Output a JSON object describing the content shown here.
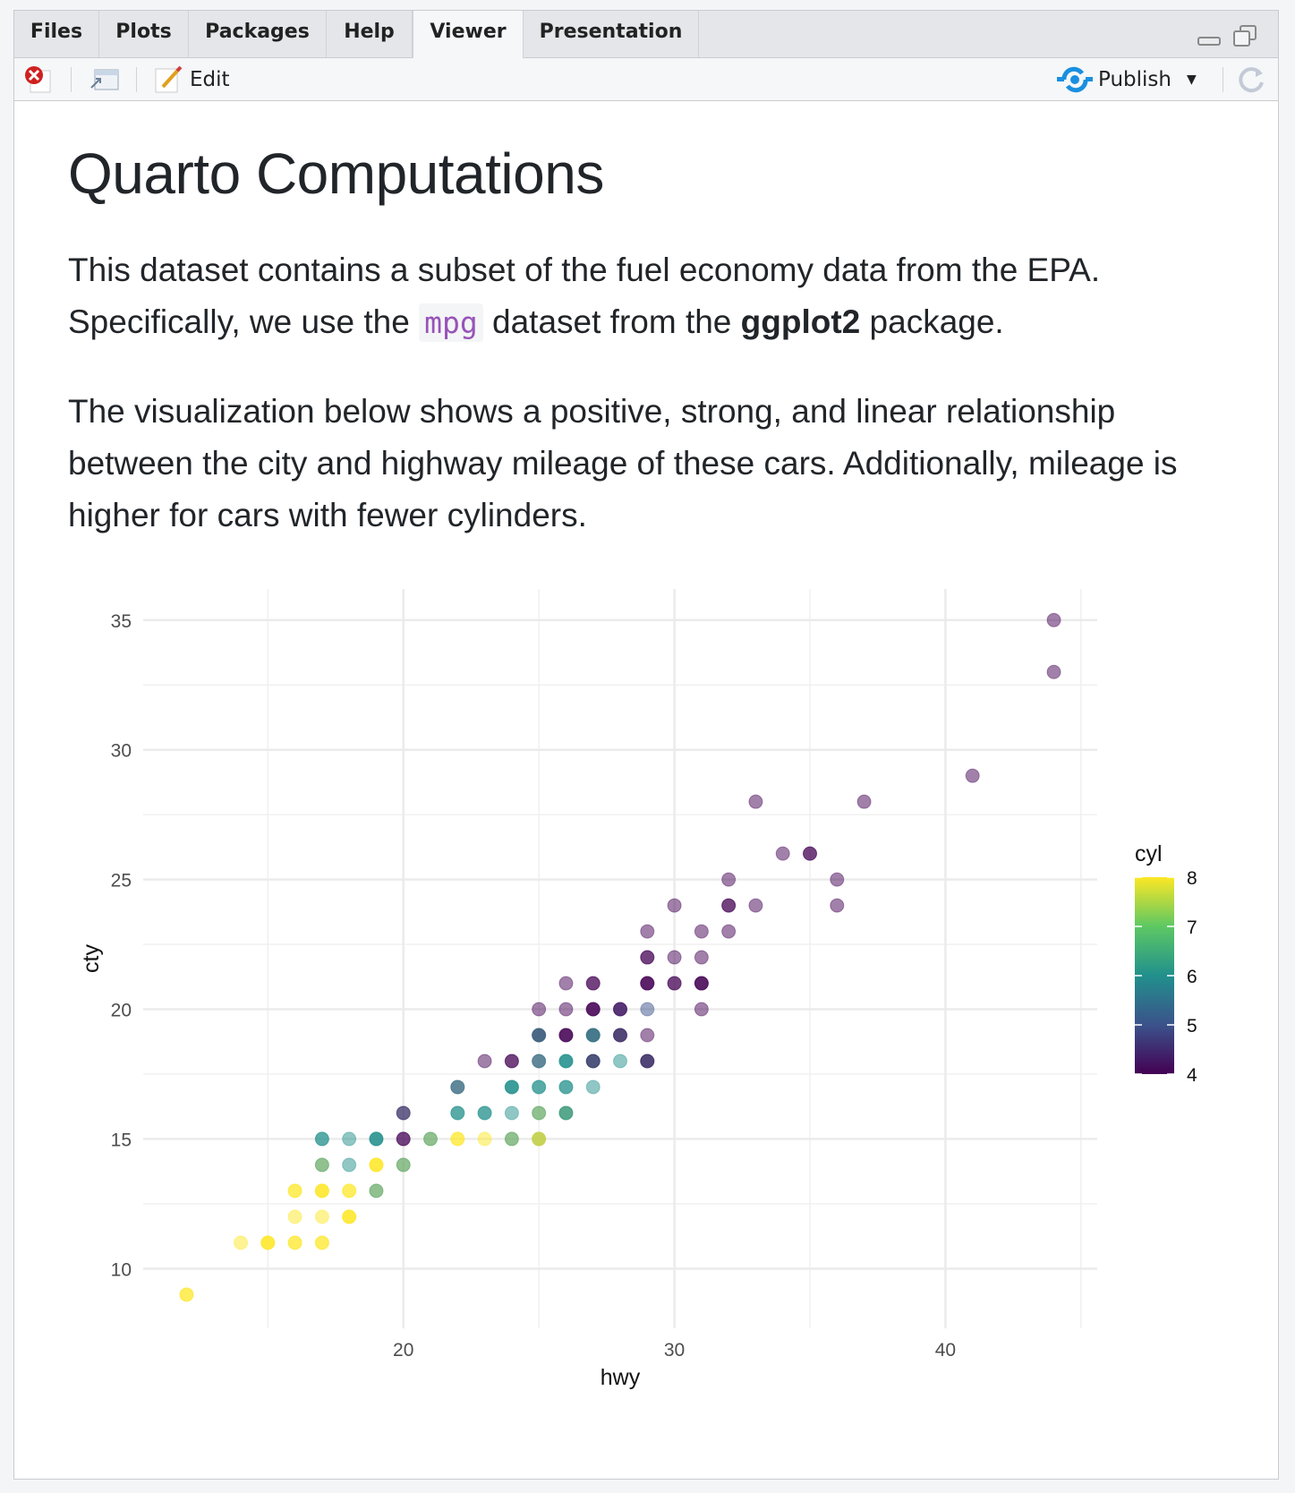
{
  "tabs": [
    {
      "label": "Files"
    },
    {
      "label": "Plots"
    },
    {
      "label": "Packages"
    },
    {
      "label": "Help"
    },
    {
      "label": "Viewer",
      "active": true
    },
    {
      "label": "Presentation"
    }
  ],
  "toolbar": {
    "edit_label": "Edit",
    "publish_label": "Publish",
    "publish_color": "#1a8fe0"
  },
  "document": {
    "title": "Quarto Computations",
    "para1_a": "This dataset contains a subset of the fuel economy data from the EPA. Specifically, we use the ",
    "para1_code": "mpg",
    "para1_b": " dataset from the ",
    "para1_bold": "ggplot2",
    "para1_c": " package.",
    "para2": "The visualization below shows a positive, strong, and linear relationship between the city and highway mileage of these cars. Additionally, mileage is higher for cars with fewer cylinders."
  },
  "chart_data": {
    "type": "scatter",
    "xlabel": "hwy",
    "ylabel": "cty",
    "xlim": [
      10.4,
      45.6
    ],
    "ylim": [
      7.7,
      36.2
    ],
    "xticks": [
      20,
      30,
      40
    ],
    "yticks": [
      10,
      15,
      20,
      25,
      30,
      35
    ],
    "grid": true,
    "legend": {
      "title": "cyl",
      "position": "right",
      "ticks": [
        4,
        5,
        6,
        7,
        8
      ],
      "range": [
        4,
        8
      ],
      "palette": "viridis"
    },
    "colors": [
      "#440154",
      "#3b528b",
      "#21908c",
      "#5dc863",
      "#fde725"
    ],
    "point_alpha": 0.5,
    "points": [
      [
        12,
        9,
        [
          8,
          8
        ]
      ],
      [
        14,
        11,
        [
          8
        ]
      ],
      [
        15,
        11,
        [
          8,
          8,
          8
        ]
      ],
      [
        16,
        11,
        [
          8,
          8
        ]
      ],
      [
        17,
        11,
        [
          8,
          8
        ]
      ],
      [
        16,
        12,
        [
          8
        ]
      ],
      [
        17,
        12,
        [
          8
        ]
      ],
      [
        18,
        12,
        [
          8,
          8,
          8
        ]
      ],
      [
        16,
        13,
        [
          8,
          8
        ]
      ],
      [
        17,
        13,
        [
          8,
          8,
          8
        ]
      ],
      [
        18,
        13,
        [
          8,
          8
        ]
      ],
      [
        19,
        13,
        [
          8,
          6
        ]
      ],
      [
        17,
        14,
        [
          8,
          6
        ]
      ],
      [
        18,
        14,
        [
          6
        ]
      ],
      [
        19,
        14,
        [
          8,
          8,
          8
        ]
      ],
      [
        20,
        14,
        [
          8,
          6
        ]
      ],
      [
        17,
        15,
        [
          6,
          6
        ]
      ],
      [
        18,
        15,
        [
          6
        ]
      ],
      [
        19,
        15,
        [
          6,
          6,
          6
        ]
      ],
      [
        20,
        15,
        [
          4,
          4
        ]
      ],
      [
        21,
        15,
        [
          8,
          6
        ]
      ],
      [
        22,
        15,
        [
          8,
          8
        ]
      ],
      [
        23,
        15,
        [
          8
        ]
      ],
      [
        24,
        15,
        [
          8,
          6
        ]
      ],
      [
        25,
        15,
        [
          8,
          6,
          8
        ]
      ],
      [
        20,
        16,
        [
          6,
          4
        ]
      ],
      [
        22,
        16,
        [
          6,
          6
        ]
      ],
      [
        23,
        16,
        [
          6,
          6
        ]
      ],
      [
        24,
        16,
        [
          6
        ]
      ],
      [
        25,
        16,
        [
          8,
          6
        ]
      ],
      [
        26,
        16,
        [
          8,
          6,
          6
        ]
      ],
      [
        22,
        17,
        [
          4,
          6
        ]
      ],
      [
        24,
        17,
        [
          6,
          6,
          6
        ]
      ],
      [
        25,
        17,
        [
          6,
          6
        ]
      ],
      [
        26,
        17,
        [
          6,
          6
        ]
      ],
      [
        27,
        17,
        [
          6
        ]
      ],
      [
        23,
        18,
        [
          4
        ]
      ],
      [
        24,
        18,
        [
          4,
          4
        ]
      ],
      [
        25,
        18,
        [
          4,
          6
        ]
      ],
      [
        26,
        18,
        [
          6,
          6,
          6
        ]
      ],
      [
        27,
        18,
        [
          6,
          6,
          4
        ]
      ],
      [
        28,
        18,
        [
          6
        ]
      ],
      [
        29,
        18,
        [
          4,
          6,
          4
        ]
      ],
      [
        25,
        19,
        [
          4,
          4,
          6
        ]
      ],
      [
        26,
        19,
        [
          4,
          4,
          4
        ]
      ],
      [
        27,
        19,
        [
          6,
          4,
          6
        ]
      ],
      [
        28,
        19,
        [
          4,
          6,
          4
        ]
      ],
      [
        29,
        19,
        [
          4
        ]
      ],
      [
        25,
        20,
        [
          4
        ]
      ],
      [
        26,
        20,
        [
          4
        ]
      ],
      [
        27,
        20,
        [
          4,
          4,
          4
        ]
      ],
      [
        28,
        20,
        [
          4,
          5,
          4
        ]
      ],
      [
        29,
        20,
        [
          5
        ]
      ],
      [
        31,
        20,
        [
          4
        ]
      ],
      [
        26,
        21,
        [
          4
        ]
      ],
      [
        27,
        21,
        [
          4,
          4
        ]
      ],
      [
        29,
        21,
        [
          4,
          4,
          4
        ]
      ],
      [
        30,
        21,
        [
          4,
          4
        ]
      ],
      [
        31,
        21,
        [
          4,
          4,
          4
        ]
      ],
      [
        29,
        22,
        [
          4,
          4
        ]
      ],
      [
        30,
        22,
        [
          4
        ]
      ],
      [
        31,
        22,
        [
          4
        ]
      ],
      [
        29,
        23,
        [
          4
        ]
      ],
      [
        31,
        23,
        [
          4
        ]
      ],
      [
        32,
        23,
        [
          4
        ]
      ],
      [
        30,
        24,
        [
          4
        ]
      ],
      [
        32,
        24,
        [
          4,
          4
        ]
      ],
      [
        33,
        24,
        [
          4
        ]
      ],
      [
        36,
        24,
        [
          4
        ]
      ],
      [
        32,
        25,
        [
          4
        ]
      ],
      [
        36,
        25,
        [
          4
        ]
      ],
      [
        34,
        26,
        [
          4
        ]
      ],
      [
        35,
        26,
        [
          4,
          4
        ]
      ],
      [
        33,
        28,
        [
          4
        ]
      ],
      [
        37,
        28,
        [
          4
        ]
      ],
      [
        41,
        29,
        [
          4
        ]
      ],
      [
        44,
        33,
        [
          4
        ]
      ],
      [
        44,
        35,
        [
          4
        ]
      ]
    ]
  }
}
